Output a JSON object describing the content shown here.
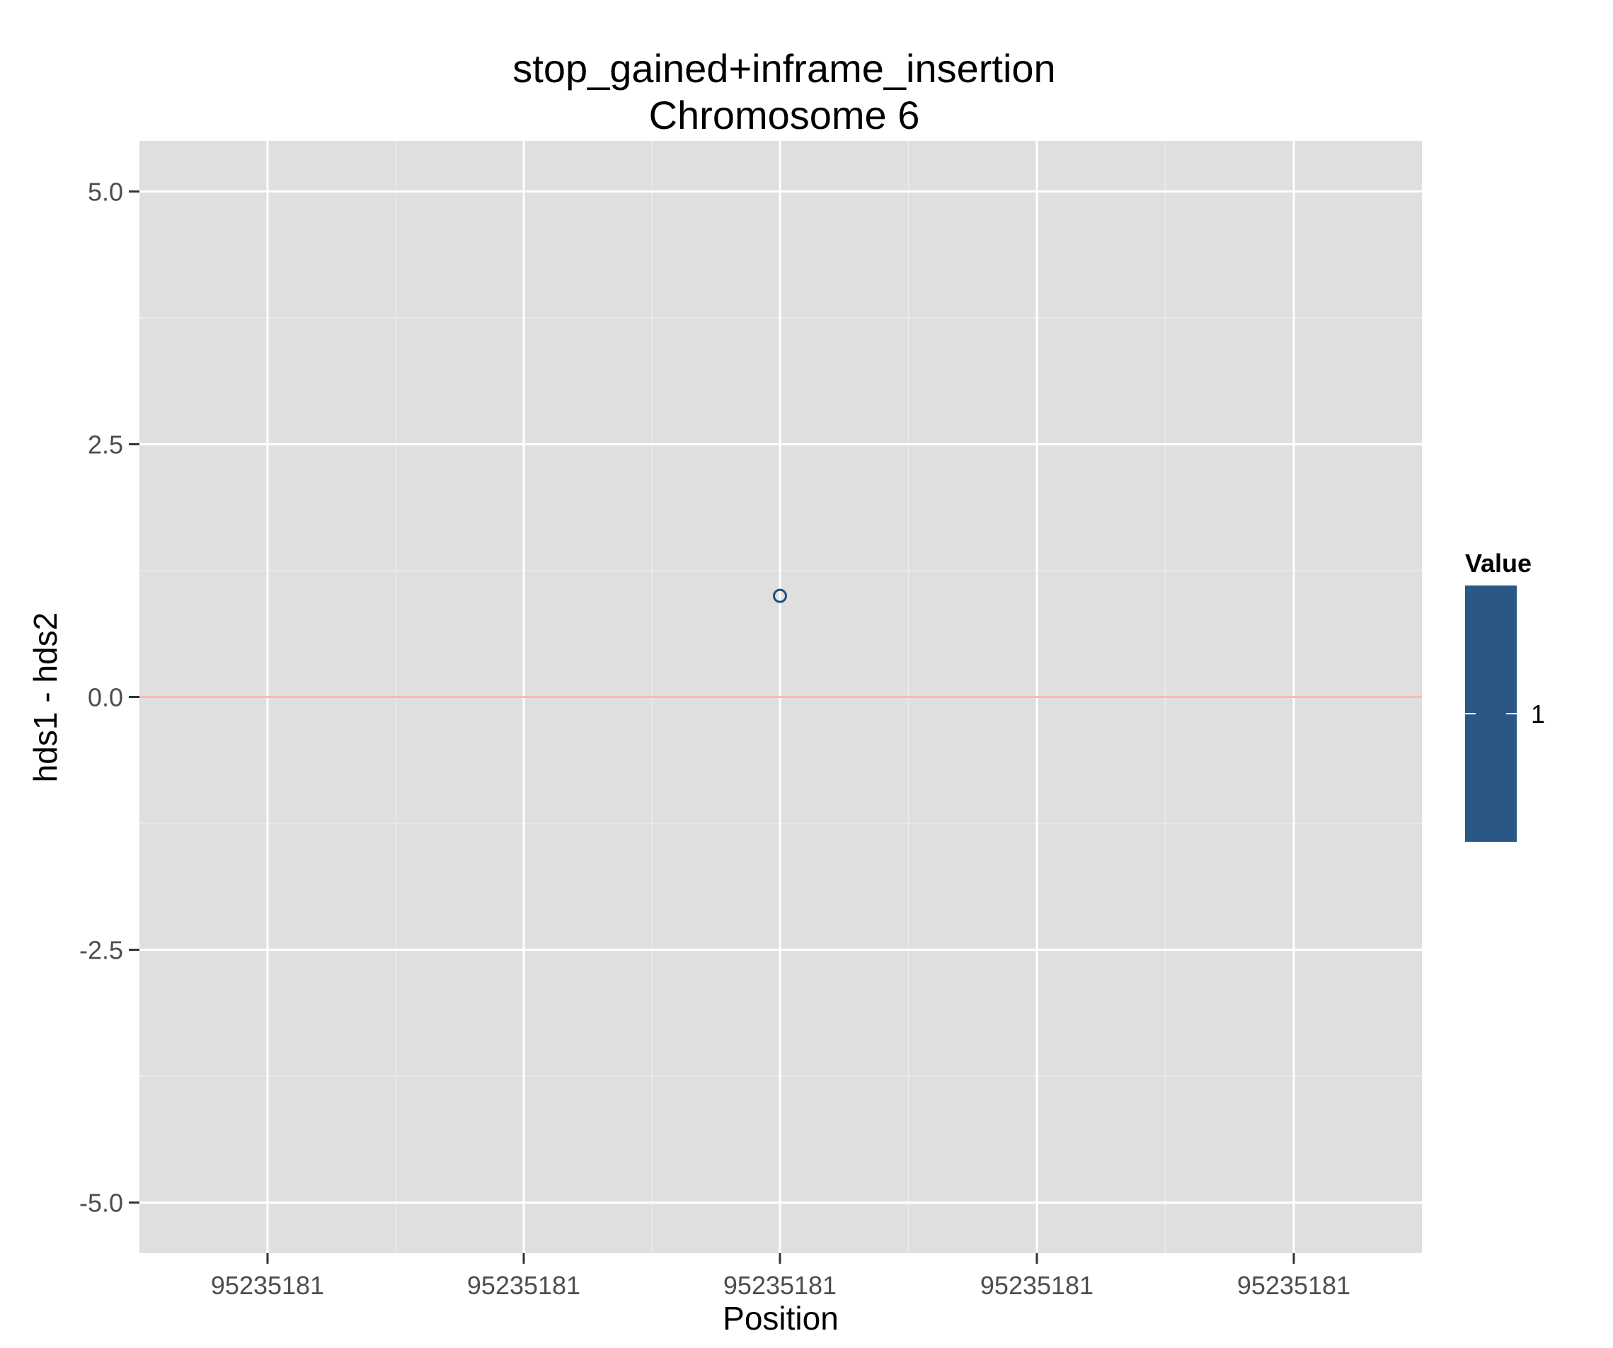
{
  "chart_data": {
    "type": "scatter",
    "title": "stop_gained+inframe_insertion",
    "subtitle": "Chromosome 6",
    "xlabel": "Position",
    "ylabel": "hds1 - hds2",
    "x_tick_labels": [
      "95235181",
      "95235181",
      "95235181",
      "95235181",
      "95235181"
    ],
    "x_tick_count": 5,
    "y_ticks": [
      -5.0,
      -2.5,
      0.0,
      2.5,
      5.0
    ],
    "y_tick_labels": [
      "-5.0",
      "-2.5",
      "0.0",
      "2.5",
      "5.0"
    ],
    "ylim": [
      -5.5,
      5.5
    ],
    "grid": true,
    "reference_line": {
      "y": 0,
      "color": "#f8b9b4"
    },
    "points": [
      {
        "x_tick_index": 2,
        "y": 1.0,
        "value": 1
      }
    ],
    "legend": {
      "title": "Value",
      "labels": [
        "1"
      ],
      "placement": "right",
      "color": "#2a5784"
    },
    "colors": {
      "panel": "#dfdfdf",
      "grid_major": "#ffffff",
      "grid_minor": "#ececec",
      "point": "#1f4e7e"
    }
  }
}
